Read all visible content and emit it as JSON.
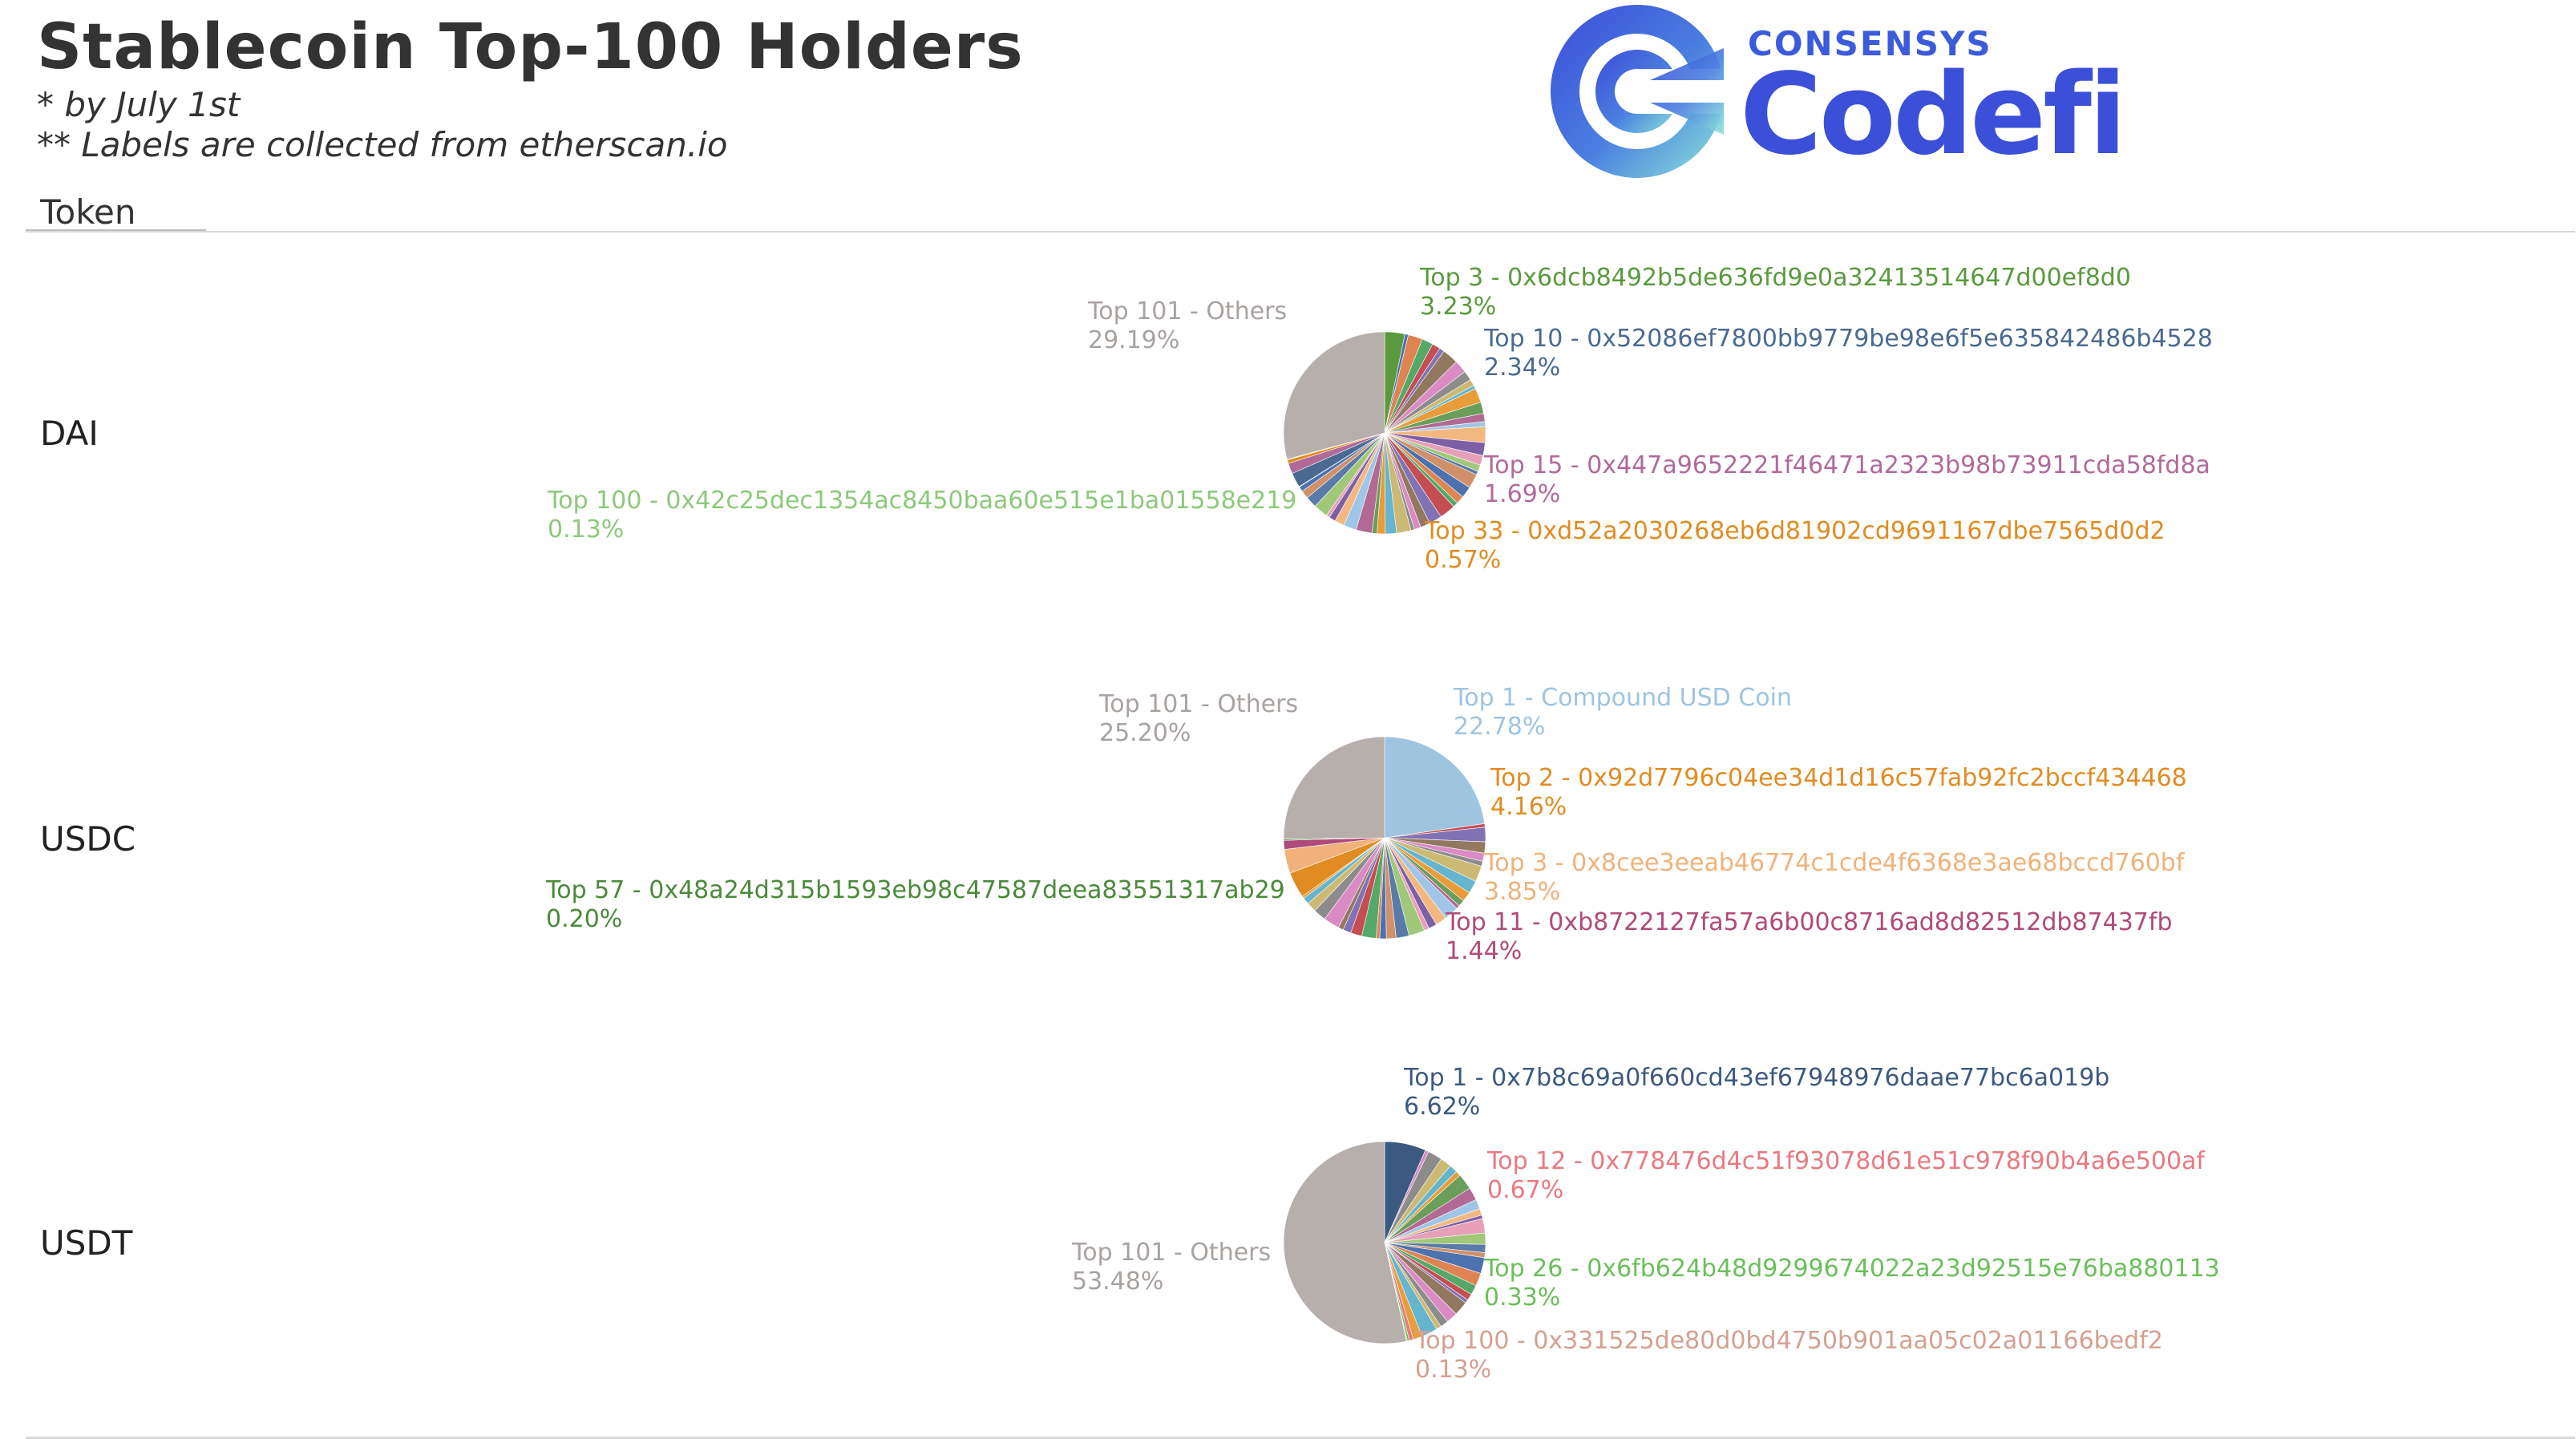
{
  "header": {
    "title": "Stablecoin Top-100 Holders",
    "note1": "*   by July 1st",
    "note2": "** Labels are collected from etherscan.io",
    "column": "Token"
  },
  "logo": {
    "brand_small": "CONSENSYS",
    "brand_big": "Codefi",
    "colors": [
      "#3d4cd9",
      "#7ad7e8"
    ]
  },
  "chart_data": [
    {
      "type": "pie",
      "token": "DAI",
      "labels": [
        {
          "text": "Top 101 - Others",
          "value": "29.19%",
          "color": "#a8a3a0"
        },
        {
          "text": "Top 3 - 0x6dcb8492b5de636fd9e0a32413514647d00ef8d0",
          "value": "3.23%",
          "color": "#5a9a3e"
        },
        {
          "text": "Top 10 - 0x52086ef7800bb9779be98e6f5e635842486b4528",
          "value": "2.34%",
          "color": "#4a6a90"
        },
        {
          "text": "Top 15 - 0x447a9652221f46471a2323b98b73911cda58fd8a",
          "value": "1.69%",
          "color": "#b06a9a"
        },
        {
          "text": "Top 33 - 0xd52a2030268eb6d81902cd9691167dbe7565d0d2",
          "value": "0.57%",
          "color": "#e08c22"
        },
        {
          "text": "Top 100 - 0x42c25dec1354ac8450baa60e515e1ba01558e219",
          "value": "0.13%",
          "color": "#8cc97a"
        }
      ],
      "others_percent": 29.19
    },
    {
      "type": "pie",
      "token": "USDC",
      "labels": [
        {
          "text": "Top 101 - Others",
          "value": "25.20%",
          "color": "#a8a3a0"
        },
        {
          "text": "Top 1 - Compound USD Coin",
          "value": "22.78%",
          "color": "#9ec4e0"
        },
        {
          "text": "Top 2 - 0x92d7796c04ee34d1d16c57fab92fc2bccf434468",
          "value": "4.16%",
          "color": "#e08c22"
        },
        {
          "text": "Top 3 - 0x8cee3eeab46774c1cde4f6368e3ae68bccd760bf",
          "value": "3.85%",
          "color": "#f0b27a"
        },
        {
          "text": "Top 11 - 0xb8722127fa57a6b00c8716ad8d82512db87437fb",
          "value": "1.44%",
          "color": "#b04a7a"
        },
        {
          "text": "Top 57 - 0x48a24d315b1593eb98c47587deea83551317ab29",
          "value": "0.20%",
          "color": "#4a8a3a"
        }
      ],
      "others_percent": 25.2
    },
    {
      "type": "pie",
      "token": "USDT",
      "labels": [
        {
          "text": "Top 1 - 0x7b8c69a0f660cd43ef67948976daae77bc6a019b",
          "value": "6.62%",
          "color": "#3c5a80"
        },
        {
          "text": "Top 12 - 0x778476d4c51f93078d61e51c978f90b4a6e500af",
          "value": "0.67%",
          "color": "#e87a80"
        },
        {
          "text": "Top 26 - 0x6fb624b48d9299674022a23d92515e76ba880113",
          "value": "0.33%",
          "color": "#6abf5a"
        },
        {
          "text": "Top 100 - 0x331525de80d0bd4750b901aa05c02a01166bedf2",
          "value": "0.13%",
          "color": "#d4a090"
        },
        {
          "text": "Top 101 - Others",
          "value": "53.48%",
          "color": "#a8a3a0"
        }
      ],
      "others_percent": 53.48
    }
  ]
}
